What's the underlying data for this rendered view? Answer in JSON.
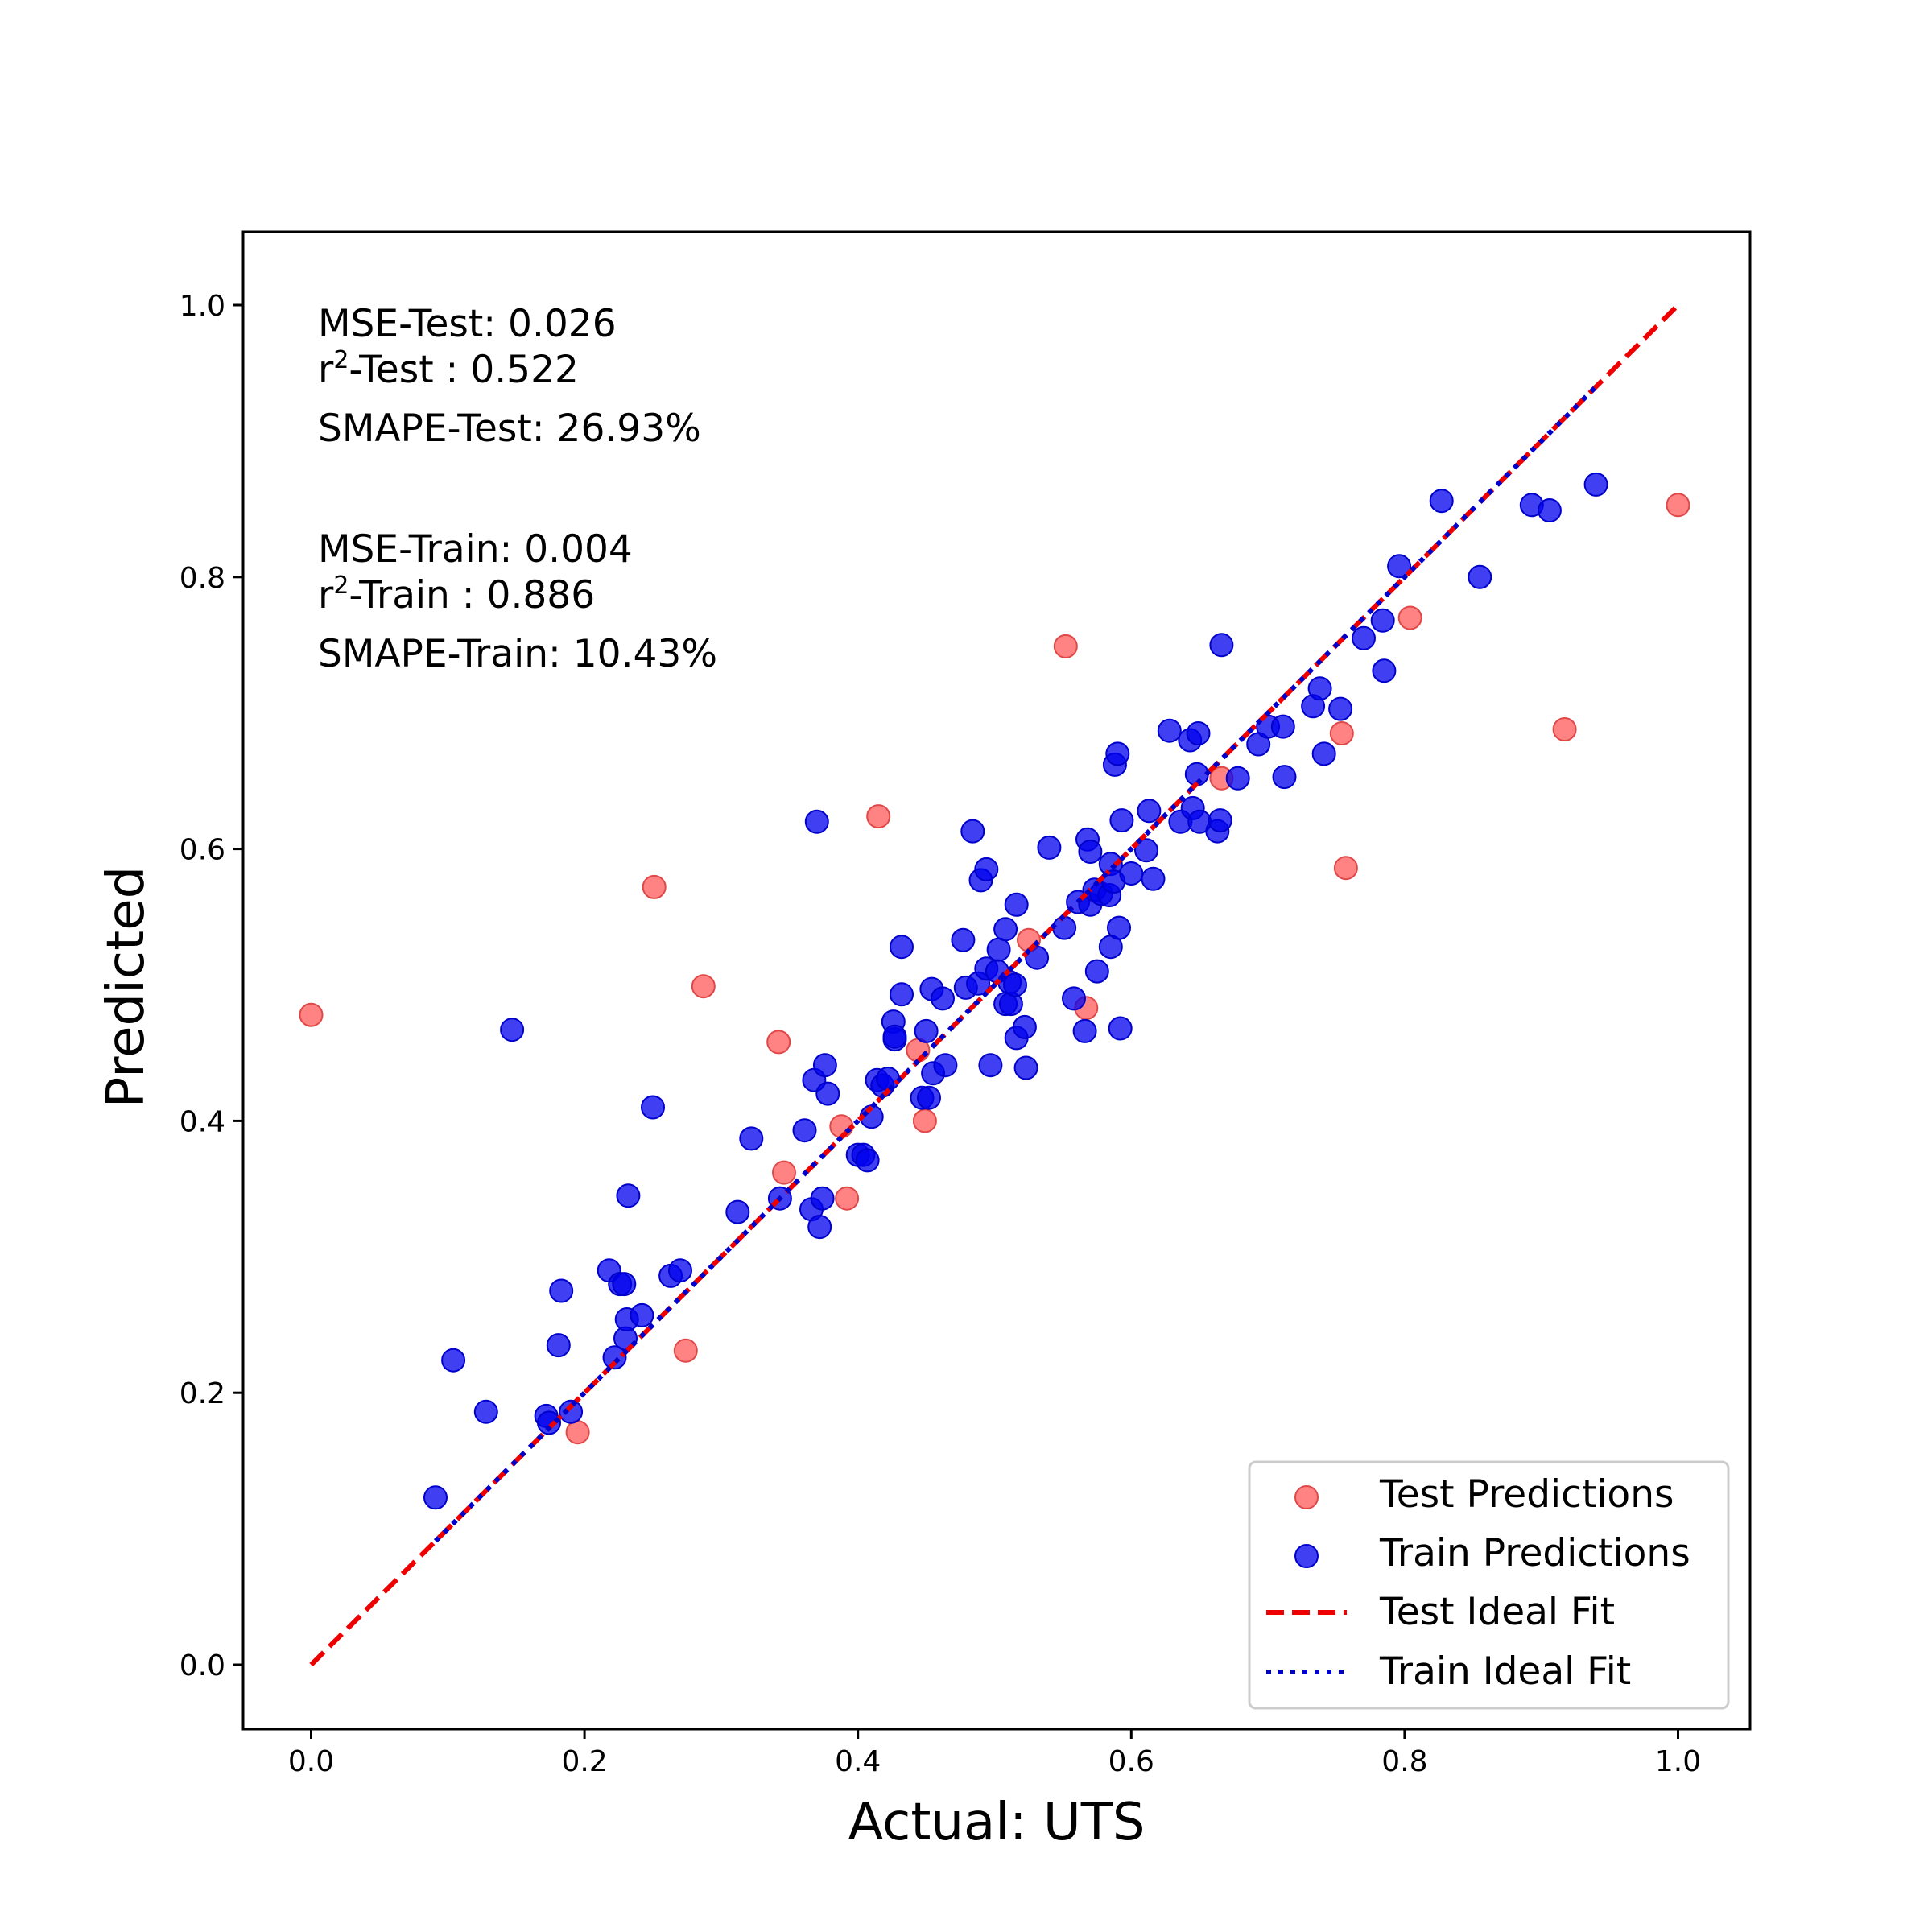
{
  "chart_data": {
    "type": "scatter",
    "xlabel": "Actual: UTS",
    "ylabel": "Predicted",
    "xlim": [
      -0.05,
      1.05
    ],
    "ylim": [
      -0.05,
      1.05
    ],
    "xticks": [
      "0.0",
      "0.2",
      "0.4",
      "0.6",
      "0.8",
      "1.0"
    ],
    "yticks": [
      "0.0",
      "0.2",
      "0.4",
      "0.6",
      "0.8",
      "1.0"
    ],
    "grid": false,
    "legend_position": "lower-right",
    "annotations": {
      "test": {
        "mse": "MSE-Test: 0.026",
        "r2_prefix": "r",
        "r2_sup": "2",
        "r2_suffix": "-Test : 0.522",
        "smape": "SMAPE-Test: 26.93%"
      },
      "train": {
        "mse": "MSE-Train: 0.004",
        "r2_prefix": "r",
        "r2_sup": "2",
        "r2_suffix": "-Train : 0.886",
        "smape": "SMAPE-Train: 10.43%"
      }
    },
    "series": [
      {
        "name": "Test Predictions",
        "kind": "scatter",
        "color": "#ff5a5a",
        "points": [
          [
            0.0,
            0.478
          ],
          [
            0.195,
            0.171
          ],
          [
            0.251,
            0.572
          ],
          [
            0.274,
            0.231
          ],
          [
            0.287,
            0.499
          ],
          [
            0.342,
            0.458
          ],
          [
            0.346,
            0.362
          ],
          [
            0.388,
            0.396
          ],
          [
            0.392,
            0.343
          ],
          [
            0.415,
            0.624
          ],
          [
            0.444,
            0.452
          ],
          [
            0.449,
            0.4
          ],
          [
            0.525,
            0.533
          ],
          [
            0.552,
            0.749
          ],
          [
            0.567,
            0.483
          ],
          [
            0.666,
            0.652
          ],
          [
            0.754,
            0.685
          ],
          [
            0.757,
            0.586
          ],
          [
            0.804,
            0.77
          ],
          [
            0.917,
            0.688
          ],
          [
            1.0,
            0.853
          ]
        ]
      },
      {
        "name": "Train Predictions",
        "kind": "scatter",
        "color": "#0000ee",
        "points": [
          [
            0.091,
            0.123
          ],
          [
            0.104,
            0.224
          ],
          [
            0.128,
            0.186
          ],
          [
            0.147,
            0.467
          ],
          [
            0.172,
            0.183
          ],
          [
            0.174,
            0.178
          ],
          [
            0.181,
            0.235
          ],
          [
            0.183,
            0.275
          ],
          [
            0.19,
            0.186
          ],
          [
            0.218,
            0.29
          ],
          [
            0.222,
            0.226
          ],
          [
            0.226,
            0.28
          ],
          [
            0.229,
            0.28
          ],
          [
            0.23,
            0.24
          ],
          [
            0.231,
            0.254
          ],
          [
            0.232,
            0.345
          ],
          [
            0.242,
            0.257
          ],
          [
            0.25,
            0.41
          ],
          [
            0.263,
            0.286
          ],
          [
            0.27,
            0.29
          ],
          [
            0.312,
            0.333
          ],
          [
            0.322,
            0.387
          ],
          [
            0.343,
            0.343
          ],
          [
            0.361,
            0.393
          ],
          [
            0.366,
            0.335
          ],
          [
            0.368,
            0.43
          ],
          [
            0.37,
            0.62
          ],
          [
            0.372,
            0.322
          ],
          [
            0.374,
            0.343
          ],
          [
            0.376,
            0.441
          ],
          [
            0.378,
            0.42
          ],
          [
            0.4,
            0.375
          ],
          [
            0.404,
            0.375
          ],
          [
            0.407,
            0.371
          ],
          [
            0.41,
            0.403
          ],
          [
            0.414,
            0.43
          ],
          [
            0.418,
            0.426
          ],
          [
            0.422,
            0.431
          ],
          [
            0.426,
            0.473
          ],
          [
            0.427,
            0.46
          ],
          [
            0.427,
            0.462
          ],
          [
            0.432,
            0.528
          ],
          [
            0.432,
            0.493
          ],
          [
            0.447,
            0.417
          ],
          [
            0.45,
            0.466
          ],
          [
            0.452,
            0.417
          ],
          [
            0.454,
            0.497
          ],
          [
            0.455,
            0.435
          ],
          [
            0.462,
            0.49
          ],
          [
            0.464,
            0.441
          ],
          [
            0.477,
            0.533
          ],
          [
            0.479,
            0.498
          ],
          [
            0.484,
            0.613
          ],
          [
            0.488,
            0.501
          ],
          [
            0.49,
            0.577
          ],
          [
            0.494,
            0.585
          ],
          [
            0.494,
            0.512
          ],
          [
            0.497,
            0.441
          ],
          [
            0.502,
            0.51
          ],
          [
            0.503,
            0.526
          ],
          [
            0.508,
            0.541
          ],
          [
            0.508,
            0.486
          ],
          [
            0.511,
            0.502
          ],
          [
            0.512,
            0.486
          ],
          [
            0.515,
            0.5
          ],
          [
            0.516,
            0.461
          ],
          [
            0.516,
            0.559
          ],
          [
            0.522,
            0.469
          ],
          [
            0.523,
            0.439
          ],
          [
            0.531,
            0.52
          ],
          [
            0.54,
            0.601
          ],
          [
            0.551,
            0.542
          ],
          [
            0.558,
            0.49
          ],
          [
            0.561,
            0.561
          ],
          [
            0.566,
            0.466
          ],
          [
            0.568,
            0.607
          ],
          [
            0.57,
            0.598
          ],
          [
            0.57,
            0.559
          ],
          [
            0.573,
            0.57
          ],
          [
            0.575,
            0.51
          ],
          [
            0.578,
            0.567
          ],
          [
            0.584,
            0.566
          ],
          [
            0.585,
            0.589
          ],
          [
            0.585,
            0.528
          ],
          [
            0.587,
            0.576
          ],
          [
            0.588,
            0.662
          ],
          [
            0.59,
            0.67
          ],
          [
            0.591,
            0.542
          ],
          [
            0.592,
            0.468
          ],
          [
            0.593,
            0.621
          ],
          [
            0.6,
            0.582
          ],
          [
            0.611,
            0.599
          ],
          [
            0.613,
            0.628
          ],
          [
            0.616,
            0.578
          ],
          [
            0.628,
            0.687
          ],
          [
            0.636,
            0.62
          ],
          [
            0.643,
            0.68
          ],
          [
            0.645,
            0.63
          ],
          [
            0.648,
            0.655
          ],
          [
            0.649,
            0.685
          ],
          [
            0.65,
            0.62
          ],
          [
            0.663,
            0.613
          ],
          [
            0.665,
            0.621
          ],
          [
            0.666,
            0.75
          ],
          [
            0.678,
            0.652
          ],
          [
            0.693,
            0.677
          ],
          [
            0.7,
            0.69
          ],
          [
            0.711,
            0.69
          ],
          [
            0.712,
            0.653
          ],
          [
            0.733,
            0.705
          ],
          [
            0.738,
            0.718
          ],
          [
            0.741,
            0.67
          ],
          [
            0.753,
            0.703
          ],
          [
            0.77,
            0.755
          ],
          [
            0.784,
            0.768
          ],
          [
            0.785,
            0.731
          ],
          [
            0.796,
            0.808
          ],
          [
            0.827,
            0.856
          ],
          [
            0.855,
            0.8
          ],
          [
            0.893,
            0.853
          ],
          [
            0.906,
            0.849
          ],
          [
            0.94,
            0.868
          ]
        ]
      },
      {
        "name": "Test Ideal Fit",
        "kind": "line",
        "style": "dashed",
        "color": "#ee0000",
        "x": [
          0.0,
          1.0
        ],
        "y": [
          0.0,
          1.0
        ]
      },
      {
        "name": "Train Ideal Fit",
        "kind": "line",
        "style": "dotted",
        "color": "#0000cc",
        "x": [
          0.091,
          0.94
        ],
        "y": [
          0.091,
          0.94
        ]
      }
    ]
  }
}
